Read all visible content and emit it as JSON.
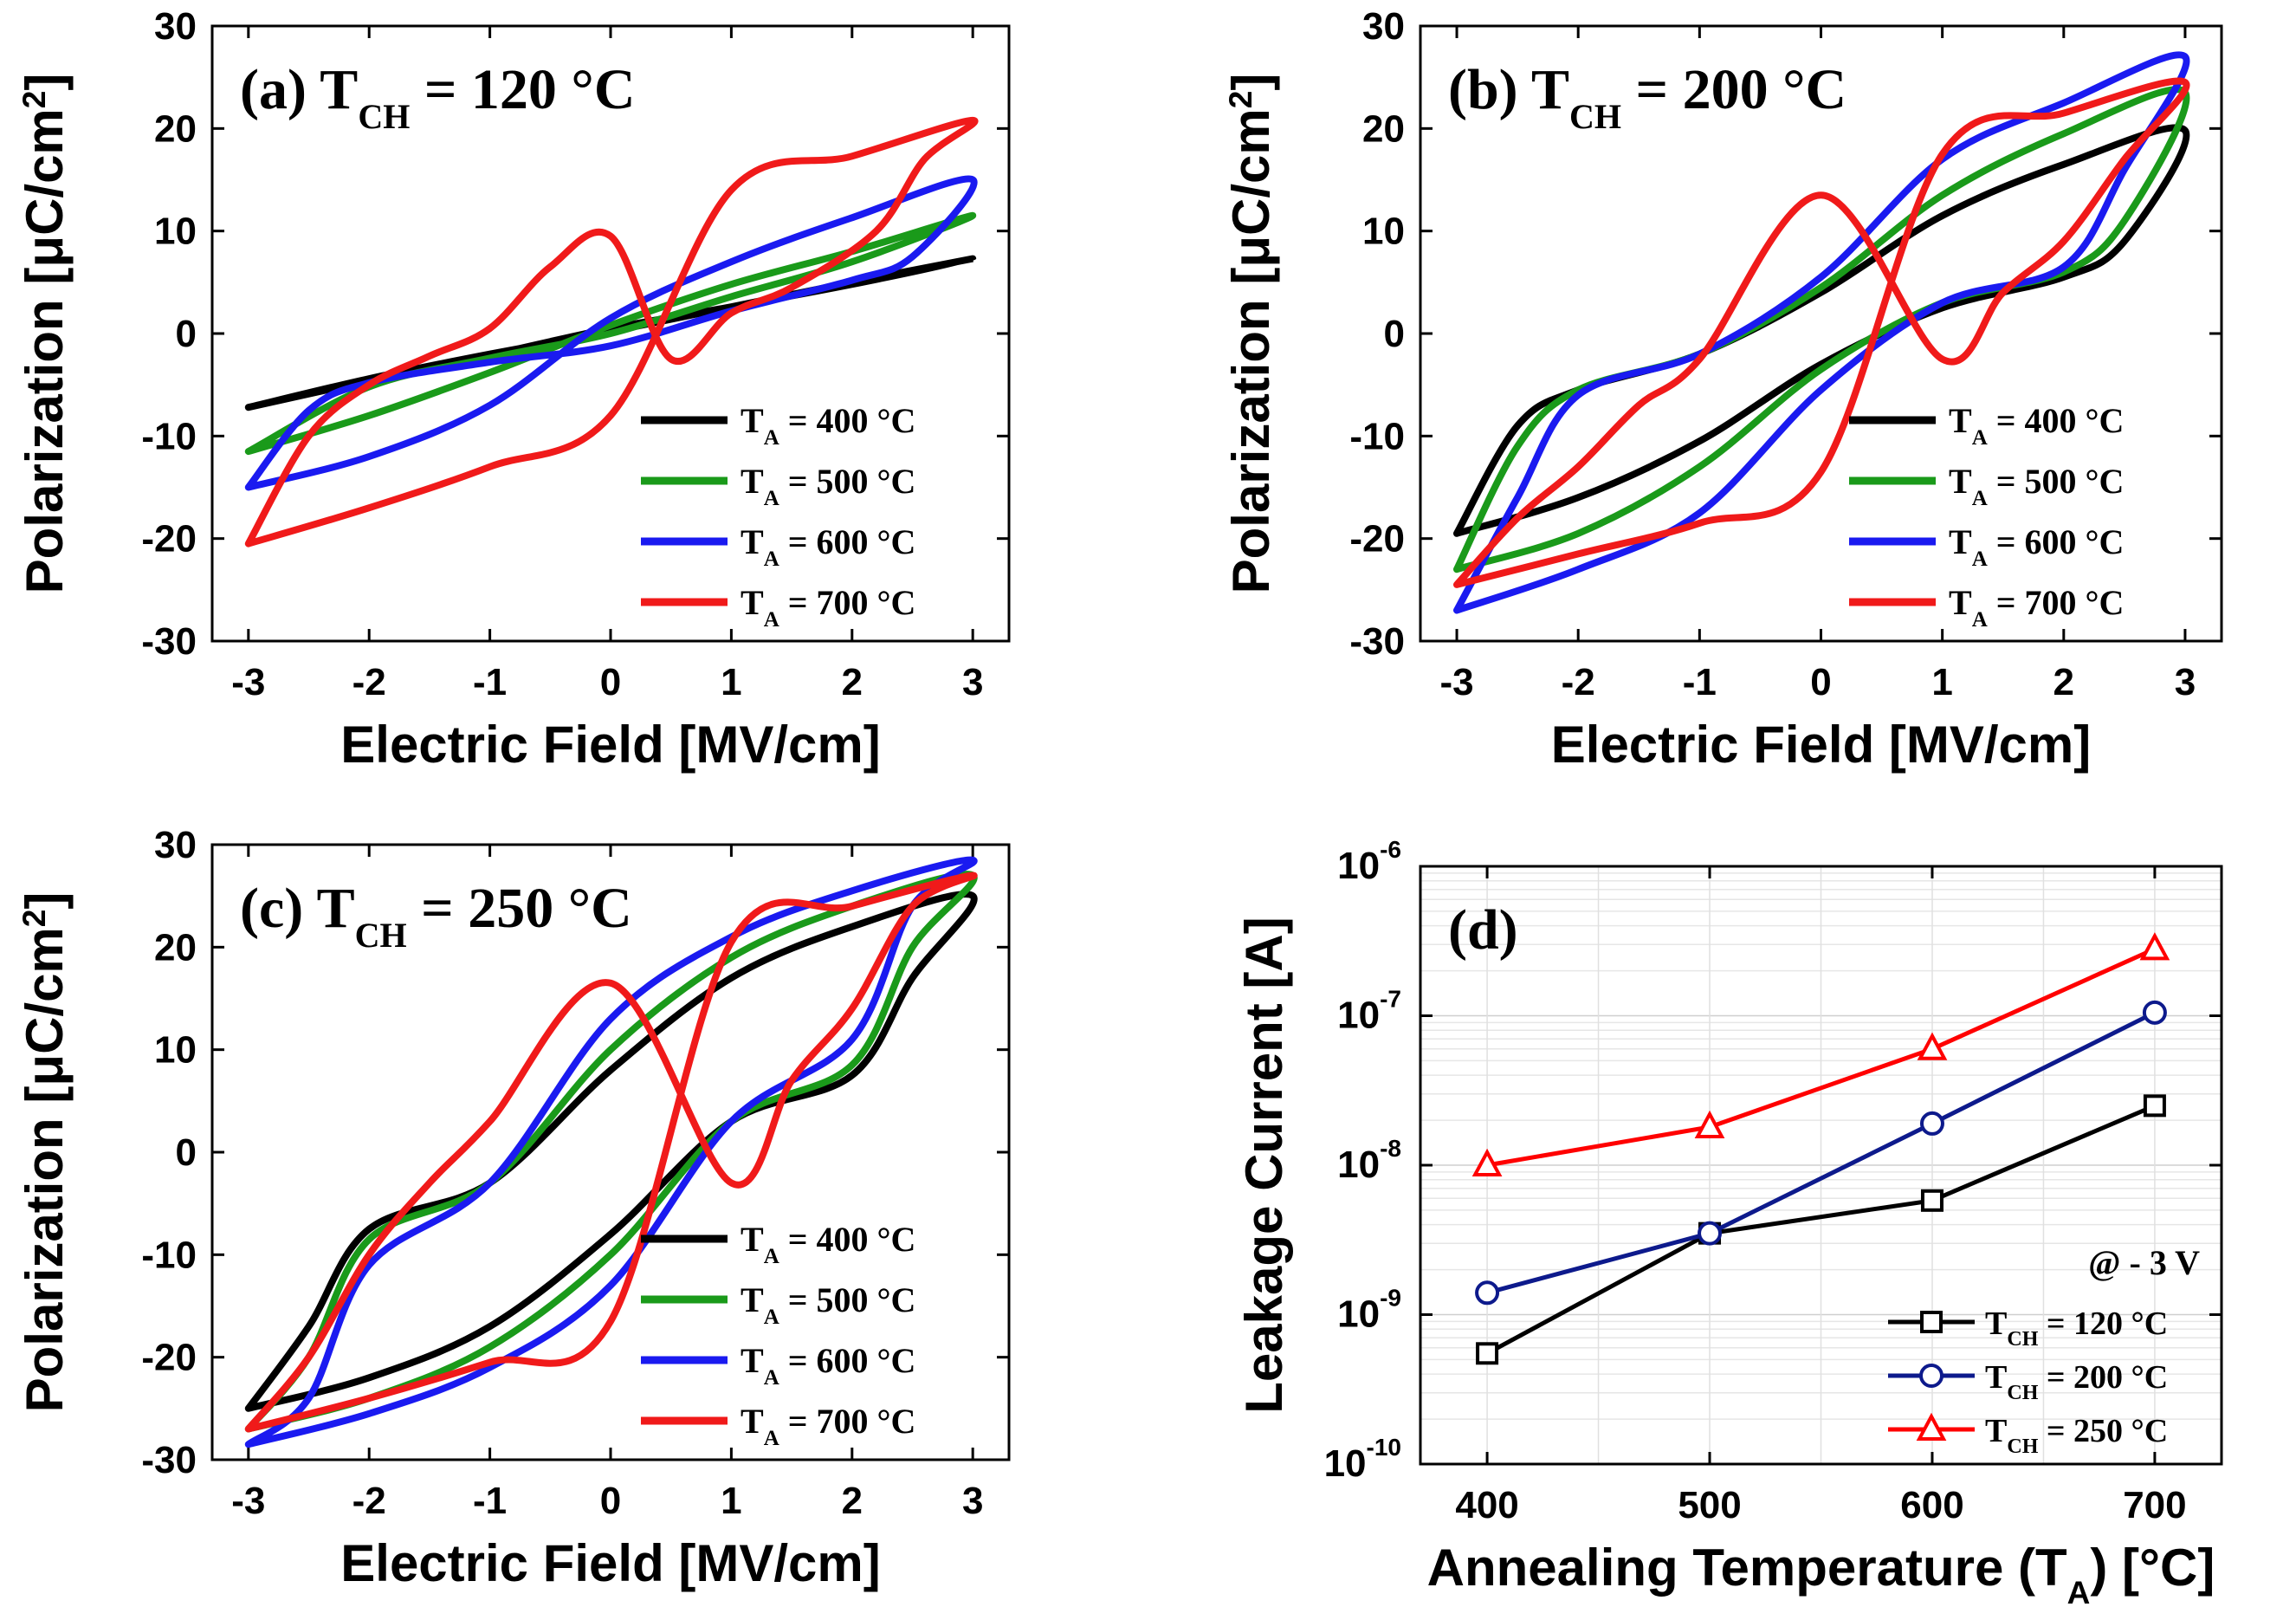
{
  "chart_data": [
    {
      "id": "a",
      "type": "line",
      "panel_label": "(a)",
      "title": {
        "main": "T",
        "sub": "CH",
        "rest": " = 120 °C"
      },
      "xlabel": "Electric Field [MV/cm]",
      "ylabel": {
        "main": "Polarization [μC/cm",
        "sup": "2",
        "end": "]"
      },
      "xlim": [
        -3.3,
        3.3
      ],
      "ylim": [
        -30,
        30
      ],
      "xticks": [
        -3,
        -2,
        -1,
        0,
        1,
        2,
        3
      ],
      "yticks": [
        -30,
        -20,
        -10,
        0,
        10,
        20,
        30
      ],
      "legend_placement": "bottom-right",
      "series": [
        {
          "label": {
            "main": "T",
            "sub": "A",
            "rest": " = 400 °C"
          },
          "color": "#000000",
          "x": [
            -3,
            -2,
            -1,
            0,
            1,
            2,
            3,
            2,
            1,
            0,
            -1,
            -2,
            -3
          ],
          "y": [
            -7.2,
            -4.4,
            -2.0,
            0.2,
            2.6,
            5.0,
            7.3,
            4.8,
            2.6,
            0.5,
            -2.1,
            -4.6,
            -7.2
          ]
        },
        {
          "label": {
            "main": "T",
            "sub": "A",
            "rest": " = 500 °C"
          },
          "color": "#1a9a1a",
          "x": [
            -3,
            -2,
            -1,
            0,
            1,
            2,
            3,
            2,
            1,
            0,
            -1,
            -2,
            -3
          ],
          "y": [
            -11.5,
            -8.0,
            -3.8,
            0.8,
            4.8,
            8.0,
            11.5,
            7.0,
            3.6,
            0.0,
            -2.4,
            -5.2,
            -11.5
          ]
        },
        {
          "label": {
            "main": "T",
            "sub": "A",
            "rest": " = 600 °C"
          },
          "color": "#1a1af0",
          "x": [
            -3,
            -2,
            -1,
            0,
            1,
            2,
            3,
            2.5,
            2,
            1,
            0,
            -1,
            -2,
            -2.5,
            -3
          ],
          "y": [
            -15.0,
            -12.0,
            -7.0,
            1.5,
            7.0,
            11.3,
            15.0,
            7.5,
            5.2,
            2.2,
            -1.2,
            -2.8,
            -4.8,
            -7.5,
            -15.0
          ]
        },
        {
          "label": {
            "main": "T",
            "sub": "A",
            "rest": " = 700 °C"
          },
          "color": "#f01a1a",
          "x": [
            -3,
            -2,
            -1,
            0,
            1,
            2,
            3,
            2.6,
            2.2,
            1.5,
            1,
            0.5,
            0,
            -0.5,
            -1,
            -1.5,
            -2,
            -2.5,
            -3
          ],
          "y": [
            -20.5,
            -17.0,
            -13.0,
            -8.0,
            14.0,
            17.3,
            20.8,
            17.0,
            10.0,
            4.5,
            2.0,
            -2.5,
            9.5,
            6.5,
            0.5,
            -2.2,
            -5.0,
            -10.0,
            -20.5
          ]
        }
      ]
    },
    {
      "id": "b",
      "type": "line",
      "panel_label": "(b)",
      "title": {
        "main": "T",
        "sub": "CH",
        "rest": " = 200 °C"
      },
      "xlabel": "Electric Field [MV/cm]",
      "ylabel": {
        "main": "Polarization [μC/cm",
        "sup": "2",
        "end": "]"
      },
      "xlim": [
        -3.3,
        3.3
      ],
      "ylim": [
        -30,
        30
      ],
      "xticks": [
        -3,
        -2,
        -1,
        0,
        1,
        2,
        3
      ],
      "yticks": [
        -30,
        -20,
        -10,
        0,
        10,
        20,
        30
      ],
      "legend_placement": "bottom-right",
      "series": [
        {
          "label": {
            "main": "T",
            "sub": "A",
            "rest": " = 400 °C"
          },
          "color": "#000000",
          "x": [
            -3,
            -2.5,
            -2,
            -1,
            0,
            1,
            2,
            3,
            2.5,
            2,
            1,
            0,
            -1,
            -2,
            -3
          ],
          "y": [
            -19.5,
            -9.0,
            -5.5,
            -2.0,
            4.0,
            11.5,
            16.5,
            19.8,
            9.0,
            5.5,
            2.5,
            -3.0,
            -10.5,
            -16.0,
            -19.5
          ]
        },
        {
          "label": {
            "main": "T",
            "sub": "A",
            "rest": " = 500 °C"
          },
          "color": "#1a9a1a",
          "x": [
            -3,
            -2.5,
            -2,
            -1,
            0,
            1,
            2,
            3,
            2.5,
            2,
            1,
            0,
            -1,
            -2,
            -3
          ],
          "y": [
            -23.0,
            -11.0,
            -5.5,
            -2.0,
            4.5,
            13.5,
            19.5,
            23.5,
            11.0,
            6.0,
            3.0,
            -3.5,
            -13.0,
            -19.5,
            -23.0
          ]
        },
        {
          "label": {
            "main": "T",
            "sub": "A",
            "rest": " = 600 °C"
          },
          "color": "#1a1af0",
          "x": [
            -3,
            -2.5,
            -2,
            -1,
            0,
            1,
            2,
            3,
            2.5,
            2,
            1,
            0,
            -1,
            -2,
            -3
          ],
          "y": [
            -27.0,
            -16.0,
            -6.0,
            -2.0,
            5.5,
            17.0,
            22.5,
            27.0,
            16.0,
            6.5,
            3.0,
            -5.5,
            -17.5,
            -23.0,
            -27.0
          ]
        },
        {
          "label": {
            "main": "T",
            "sub": "A",
            "rest": " = 700 °C"
          },
          "color": "#f01a1a",
          "x": [
            -3,
            -2,
            -1,
            0,
            1,
            2,
            3,
            2.5,
            2,
            1.5,
            1,
            0,
            -1,
            -1.5,
            -2,
            -2.5,
            -3
          ],
          "y": [
            -24.5,
            -21.5,
            -18.5,
            -13.5,
            17.5,
            21.5,
            24.5,
            17.0,
            9.0,
            4.0,
            -2.5,
            13.5,
            -2.5,
            -7.0,
            -13.0,
            -18.0,
            -24.5
          ]
        }
      ]
    },
    {
      "id": "c",
      "type": "line",
      "panel_label": "(c)",
      "title": {
        "main": "T",
        "sub": "CH",
        "rest": " = 250 °C"
      },
      "xlabel": "Electric Field [MV/cm]",
      "ylabel": {
        "main": "Polarization [μC/cm",
        "sup": "2",
        "end": "]"
      },
      "xlim": [
        -3.3,
        3.3
      ],
      "ylim": [
        -30,
        30
      ],
      "xticks": [
        -3,
        -2,
        -1,
        0,
        1,
        2,
        3
      ],
      "yticks": [
        -30,
        -20,
        -10,
        0,
        10,
        20,
        30
      ],
      "legend_placement": "bottom-right",
      "series": [
        {
          "label": {
            "main": "T",
            "sub": "A",
            "rest": " = 400 °C"
          },
          "color": "#000000",
          "x": [
            -3,
            -2.5,
            -2,
            -1,
            0,
            1,
            2,
            3,
            2.5,
            2,
            1,
            0,
            -1,
            -2,
            -3
          ],
          "y": [
            -25.0,
            -17.0,
            -7.5,
            -3.0,
            8.0,
            17.0,
            22.0,
            25.0,
            17.0,
            7.5,
            3.0,
            -8.0,
            -17.0,
            -22.0,
            -25.0
          ]
        },
        {
          "label": {
            "main": "T",
            "sub": "A",
            "rest": " = 500 °C"
          },
          "color": "#1a9a1a",
          "x": [
            -3,
            -2.5,
            -2,
            -1,
            0,
            1,
            2,
            3,
            2.5,
            2,
            1,
            0,
            -1,
            -2,
            -3
          ],
          "y": [
            -27.0,
            -20.0,
            -8.5,
            -3.0,
            10.0,
            19.0,
            24.0,
            27.0,
            20.0,
            8.5,
            3.0,
            -10.0,
            -19.0,
            -24.0,
            -27.0
          ]
        },
        {
          "label": {
            "main": "T",
            "sub": "A",
            "rest": " = 600 °C"
          },
          "color": "#1a1af0",
          "x": [
            -3,
            -2.5,
            -2,
            -1,
            0,
            1,
            2,
            3,
            2.5,
            2,
            1,
            0,
            -1,
            -2,
            -3
          ],
          "y": [
            -28.5,
            -24.0,
            -11.0,
            -3.0,
            13.0,
            21.0,
            25.5,
            28.5,
            24.0,
            11.0,
            3.0,
            -13.0,
            -21.0,
            -25.5,
            -28.5
          ]
        },
        {
          "label": {
            "main": "T",
            "sub": "A",
            "rest": " = 700 °C"
          },
          "color": "#f01a1a",
          "x": [
            -3,
            -2,
            -1,
            0,
            1,
            2,
            3,
            2.5,
            2,
            1.5,
            1,
            0,
            -1,
            -1.5,
            -2,
            -2.5,
            -3
          ],
          "y": [
            -27.0,
            -24.0,
            -20.5,
            -16.5,
            20.5,
            24.0,
            27.0,
            24.0,
            14.0,
            7.0,
            -3.0,
            16.5,
            3.0,
            -3.0,
            -10.0,
            -20.0,
            -27.0
          ]
        }
      ]
    },
    {
      "id": "d",
      "type": "line",
      "panel_label": "(d)",
      "xlabel": {
        "main": "Annealing Temperature (T",
        "sub": "A",
        "end": ") [°C]"
      },
      "ylabel": "Leakage Current [A]",
      "ylog": true,
      "xlim": [
        370,
        730
      ],
      "ylim": [
        1e-10,
        1e-06
      ],
      "xticks": [
        400,
        500,
        600,
        700
      ],
      "yticks": [
        {
          "base": "10",
          "exp": "-10",
          "value": 1e-10
        },
        {
          "base": "10",
          "exp": "-9",
          "value": 1e-09
        },
        {
          "base": "10",
          "exp": "-8",
          "value": 1e-08
        },
        {
          "base": "10",
          "exp": "-7",
          "value": 1e-07
        },
        {
          "base": "10",
          "exp": "-6",
          "value": 1e-06
        }
      ],
      "grid": true,
      "legend_placement": "bottom-right",
      "legend_note": "@ - 3 V",
      "series": [
        {
          "label": {
            "main": "T",
            "sub": "CH",
            "rest": " = 120 °C"
          },
          "color": "#000000",
          "marker": "square",
          "x": [
            400,
            500,
            600,
            700
          ],
          "y": [
            5.5e-10,
            3.5e-09,
            5.8e-09,
            2.5e-08
          ]
        },
        {
          "label": {
            "main": "T",
            "sub": "CH",
            "rest": " = 200 °C"
          },
          "color": "#0d1a8c",
          "marker": "circle",
          "x": [
            400,
            500,
            600,
            700
          ],
          "y": [
            1.4e-09,
            3.5e-09,
            1.9e-08,
            1.05e-07
          ]
        },
        {
          "label": {
            "main": "T",
            "sub": "CH",
            "rest": " = 250 °C"
          },
          "color": "#ff0000",
          "marker": "triangle",
          "x": [
            400,
            500,
            600,
            700
          ],
          "y": [
            1e-08,
            1.8e-08,
            6e-08,
            2.8e-07
          ]
        }
      ]
    }
  ]
}
